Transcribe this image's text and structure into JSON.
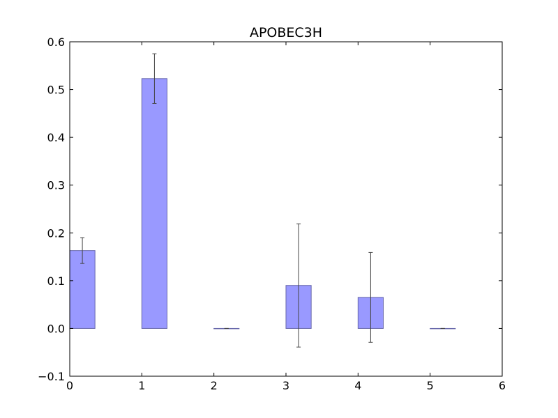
{
  "chart_data": {
    "type": "bar",
    "title": "APOBEC3H",
    "xlabel": "",
    "ylabel": "",
    "x": [
      0,
      1,
      2,
      3,
      4,
      5
    ],
    "values": [
      0.163,
      0.523,
      0.0,
      0.09,
      0.065,
      0.0
    ],
    "errors": [
      0.027,
      0.052,
      0.0,
      0.129,
      0.094,
      0.0
    ],
    "bar_width": 0.35,
    "xlim": [
      0,
      6
    ],
    "ylim": [
      -0.1,
      0.6
    ],
    "xticks": [
      "0",
      "1",
      "2",
      "3",
      "4",
      "5",
      "6"
    ],
    "yticks": [
      "−0.1",
      "0.0",
      "0.1",
      "0.2",
      "0.3",
      "0.4",
      "0.5",
      "0.6"
    ],
    "bar_color": "#9999ff",
    "bar_edge_color": "#6666aa",
    "error_color": "#444444",
    "grid": false,
    "legend": "none"
  }
}
